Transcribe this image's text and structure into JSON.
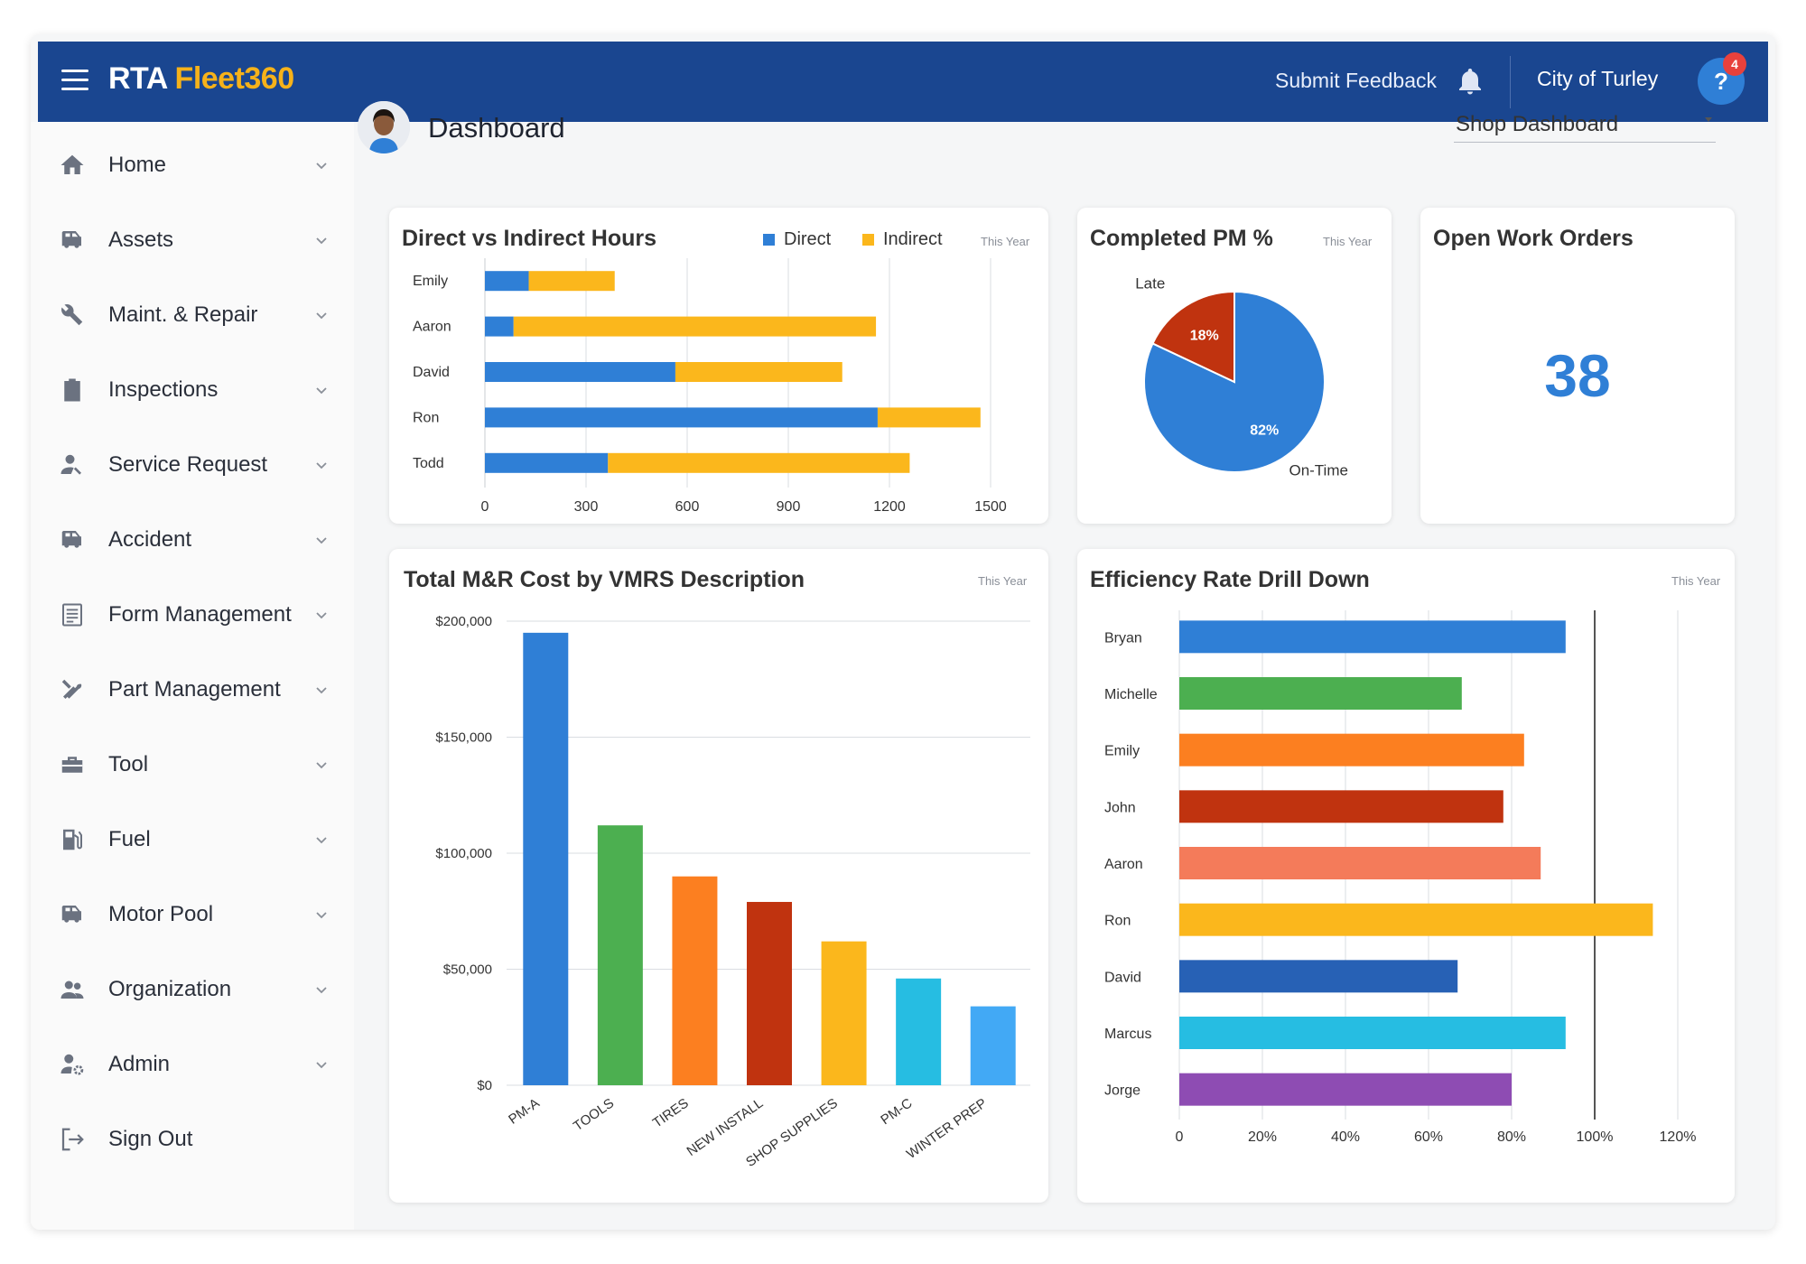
{
  "header": {
    "logo_primary": "RTA",
    "logo_accent": "Fleet360",
    "feedback_label": "Submit Feedback",
    "org_name": "City of Turley",
    "help_glyph": "?",
    "notification_count": "4"
  },
  "sidebar": {
    "items": [
      {
        "label": "Home",
        "icon": "home-icon"
      },
      {
        "label": "Assets",
        "icon": "vehicle-icon"
      },
      {
        "label": "Maint. & Repair",
        "icon": "wrench-icon"
      },
      {
        "label": "Inspections",
        "icon": "clipboard-icon"
      },
      {
        "label": "Service Request",
        "icon": "person-wrench-icon"
      },
      {
        "label": "Accident",
        "icon": "vehicle-icon"
      },
      {
        "label": "Form Management",
        "icon": "form-icon"
      },
      {
        "label": "Part Management",
        "icon": "tools-icon"
      },
      {
        "label": "Tool",
        "icon": "toolbox-icon"
      },
      {
        "label": "Fuel",
        "icon": "fuel-icon"
      },
      {
        "label": "Motor Pool",
        "icon": "vehicle-icon"
      },
      {
        "label": "Organization",
        "icon": "people-icon"
      },
      {
        "label": "Admin",
        "icon": "person-gear-icon"
      },
      {
        "label": "Sign Out",
        "icon": "sign-out-icon"
      }
    ]
  },
  "main": {
    "page_title": "Dashboard",
    "view_select": "Shop Dashboard"
  },
  "colors": {
    "header_bg": "#1a4690",
    "accent_yellow": "#f6b21a",
    "blue": "#2f7fd6",
    "red": "#c0330f"
  },
  "cards": {
    "direct_indirect": {
      "title": "Direct vs Indirect Hours",
      "period": "This Year",
      "legend_direct": "Direct",
      "legend_indirect": "Indirect"
    },
    "completed_pm": {
      "title": "Completed PM %",
      "period": "This Year"
    },
    "open_wo": {
      "title": "Open Work Orders",
      "value": "38"
    },
    "mr_cost": {
      "title": "Total M&R Cost by VMRS Description",
      "period": "This Year"
    },
    "efficiency": {
      "title": "Efficiency Rate Drill Down",
      "period": "This Year"
    }
  },
  "chart_data": [
    {
      "type": "bar",
      "orientation": "horizontal",
      "stacked": true,
      "title": "Direct vs Indirect Hours",
      "categories": [
        "Emily",
        "Aaron",
        "David",
        "Ron",
        "Todd"
      ],
      "series": [
        {
          "name": "Direct",
          "color": "#2f7fd6",
          "values": [
            130,
            85,
            565,
            1165,
            365
          ]
        },
        {
          "name": "Indirect",
          "color": "#fbb71c",
          "values": [
            255,
            1075,
            495,
            305,
            895
          ]
        }
      ],
      "xticks": [
        "0",
        "300",
        "600",
        "900",
        "1200",
        "1500"
      ],
      "xlim": [
        0,
        1500
      ],
      "grid": true,
      "legend": "top"
    },
    {
      "type": "pie",
      "title": "Completed PM %",
      "slices": [
        {
          "name": "On-Time",
          "value": 82,
          "label": "82%",
          "color": "#2f7fd6"
        },
        {
          "name": "Late",
          "value": 18,
          "label": "18%",
          "color": "#c0330f"
        }
      ]
    },
    {
      "type": "bar",
      "title": "Total M&R Cost by VMRS Description",
      "categories": [
        "PM-A",
        "TOOLS",
        "TIRES",
        "NEW INSTALL",
        "SHOP SUPPLIES",
        "PM-C",
        "WINTER PREP"
      ],
      "values": [
        195000,
        112000,
        90000,
        79000,
        62000,
        46000,
        34000
      ],
      "colors": [
        "#2f7fd6",
        "#4caf50",
        "#fc7f20",
        "#c0330f",
        "#fbb71c",
        "#26bde2",
        "#42a9f5"
      ],
      "yticks": [
        "$200,000",
        "$150,000",
        "$100,000",
        "$50,000",
        "$0"
      ],
      "ylim": [
        0,
        200000
      ],
      "grid": true
    },
    {
      "type": "bar",
      "orientation": "horizontal",
      "title": "Efficiency Rate Drill Down",
      "categories": [
        "Bryan",
        "Michelle",
        "Emily",
        "John",
        "Aaron",
        "Ron",
        "David",
        "Marcus",
        "Jorge"
      ],
      "values": [
        93,
        68,
        83,
        78,
        87,
        114,
        67,
        93,
        80
      ],
      "colors": [
        "#2f7fd6",
        "#4caf50",
        "#fc7f20",
        "#c0330f",
        "#f47b5a",
        "#fbb71c",
        "#2761b5",
        "#26bde2",
        "#8e4cb3"
      ],
      "xticks": [
        "0",
        "20%",
        "40%",
        "60%",
        "80%",
        "100%",
        "120%"
      ],
      "xlim": [
        0,
        120
      ],
      "reference_line": 100,
      "grid": true
    }
  ]
}
